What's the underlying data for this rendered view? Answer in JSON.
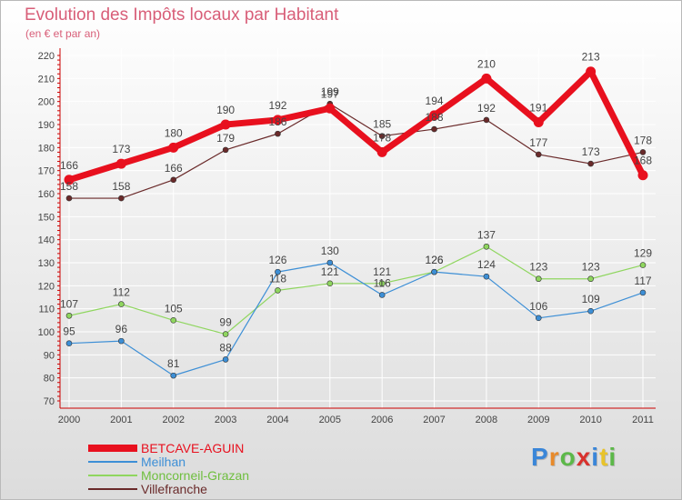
{
  "header": {
    "title": "Evolution des Impôts locaux par Habitant",
    "subtitle": "(en € et par an)"
  },
  "logo": {
    "text": "Proxiti",
    "letter_colors": [
      "#3a86d8",
      "#e88a2a",
      "#5cb849",
      "#d8312d",
      "#3a86d8",
      "#e8c32a",
      "#5cb849"
    ]
  },
  "chart_data": {
    "type": "line",
    "title": "Evolution des Impôts locaux par Habitant",
    "subtitle": "(en € et par an)",
    "xlabel": "",
    "ylabel": "",
    "x": [
      "2000",
      "2001",
      "2002",
      "2003",
      "2004",
      "2005",
      "2006",
      "2007",
      "2008",
      "2009",
      "2010",
      "2011"
    ],
    "ylim": [
      70,
      220
    ],
    "yticks": [
      "70",
      "80",
      "90",
      "100",
      "110",
      "120",
      "130",
      "140",
      "150",
      "160",
      "170",
      "180",
      "190",
      "200",
      "210",
      "220"
    ],
    "grid": true,
    "legend_position": "bottom-left",
    "series": [
      {
        "name": "BETCAVE-AGUIN",
        "color": "#e8101e",
        "values": [
          166,
          173,
          180,
          190,
          192,
          197,
          178,
          194,
          210,
          191,
          213,
          168
        ],
        "labels": [
          "166",
          "173",
          "180",
          "190",
          "192",
          "197",
          "178",
          "194",
          "210",
          "191",
          "213",
          "168"
        ]
      },
      {
        "name": "Meilhan",
        "color": "#3d8fd6",
        "values": [
          95,
          96,
          81,
          88,
          126,
          130,
          116,
          126,
          124,
          106,
          109,
          117
        ],
        "labels": [
          "95",
          "96",
          "81",
          "88",
          "126",
          "130",
          "116",
          "126",
          "124",
          "106",
          "109",
          "117"
        ]
      },
      {
        "name": "Moncorneil-Grazan",
        "color": "#8fd65f",
        "values": [
          107,
          112,
          105,
          99,
          118,
          121,
          121,
          126,
          137,
          123,
          123,
          129
        ],
        "labels": [
          "107",
          "112",
          "105",
          "99",
          "118",
          "121",
          "121",
          "126",
          "137",
          "123",
          "123",
          "129"
        ]
      },
      {
        "name": "Villefranche",
        "color": "#6a2a2a",
        "values": [
          158,
          158,
          166,
          179,
          186,
          199,
          185,
          188,
          192,
          177,
          173,
          178
        ],
        "labels": [
          "158",
          "158",
          "166",
          "179",
          "186",
          "199",
          "185",
          "188",
          "192",
          "177",
          "173",
          "178"
        ]
      }
    ]
  }
}
